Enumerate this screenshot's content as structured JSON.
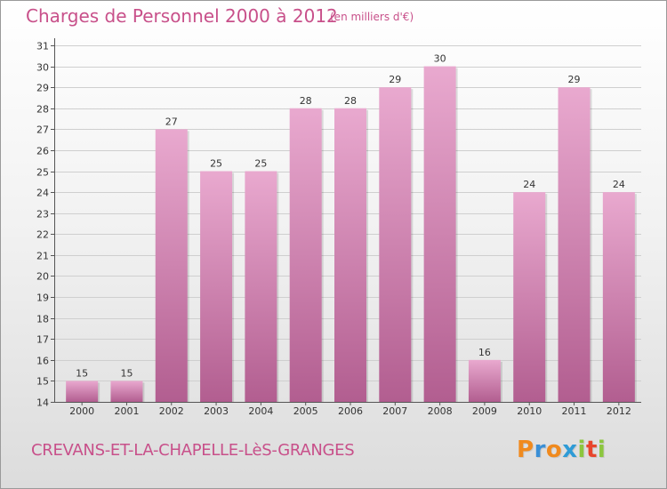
{
  "header": {
    "title": "Charges de Personnel 2000 à 2012",
    "subtitle": "(en milliers d'€)"
  },
  "footer": {
    "commune": "CREVANS-ET-LA-CHAPELLE-LèS-GRANGES",
    "logo_letters": [
      "P",
      "r",
      "o",
      "x",
      "i",
      "t",
      "i"
    ],
    "logo_colors": [
      "#f08a1e",
      "#3a8fd6",
      "#f08a1e",
      "#2e9bd6",
      "#8cc63e",
      "#e8452c",
      "#8cc63e"
    ]
  },
  "colors": {
    "bar_top": "#e9a9cf",
    "bar_bottom": "#b25e90",
    "grid": "#cfcfcf",
    "axis": "#555555"
  },
  "chart_data": {
    "type": "bar",
    "title": "Charges de Personnel 2000 à 2012",
    "subtitle": "(en milliers d'€)",
    "xlabel": "",
    "ylabel": "",
    "categories": [
      "2000",
      "2001",
      "2002",
      "2003",
      "2004",
      "2005",
      "2006",
      "2007",
      "2008",
      "2009",
      "2010",
      "2011",
      "2012"
    ],
    "values": [
      15,
      15,
      27,
      25,
      25,
      28,
      28,
      29,
      30,
      16,
      24,
      29,
      24
    ],
    "ylim": [
      14,
      31
    ],
    "yticks": [
      14,
      15,
      16,
      17,
      18,
      19,
      20,
      21,
      22,
      23,
      24,
      25,
      26,
      27,
      28,
      29,
      30,
      31
    ],
    "grid": true,
    "data_labels": true
  }
}
